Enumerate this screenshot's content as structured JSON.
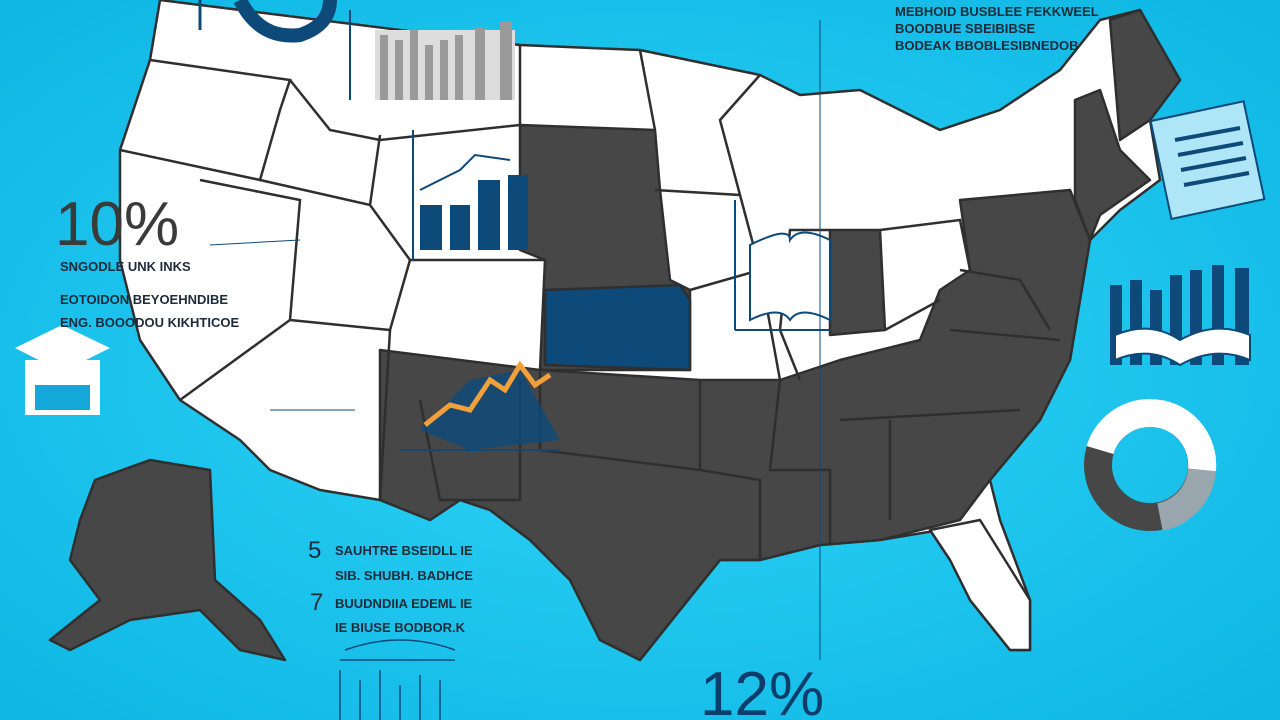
{
  "left_stat": {
    "value": "10%",
    "lines": [
      "SNGODLE UNK INKS",
      "EOTOIDON BEYOEHNDIBE",
      "ENG. BOOODOU KIKHTICOE"
    ]
  },
  "top_right_note": {
    "lines": [
      "MEBHOID BUSBLEE FEKKWEEL",
      "BOODBUE SBEIBIBSE",
      "BODEAK BBOBLESIBNEDOB"
    ]
  },
  "bottom_list": {
    "items": [
      {
        "number": "5",
        "lines": [
          "SAUHTRE BSEIDLL IE",
          "SIB. SHUBH. BADHCE"
        ]
      },
      {
        "number": "7",
        "lines": [
          "BUUDNDIIA EDEML IE",
          "IE BIUSE BODBOR.K"
        ]
      }
    ]
  },
  "bottom_stat": "12%"
}
